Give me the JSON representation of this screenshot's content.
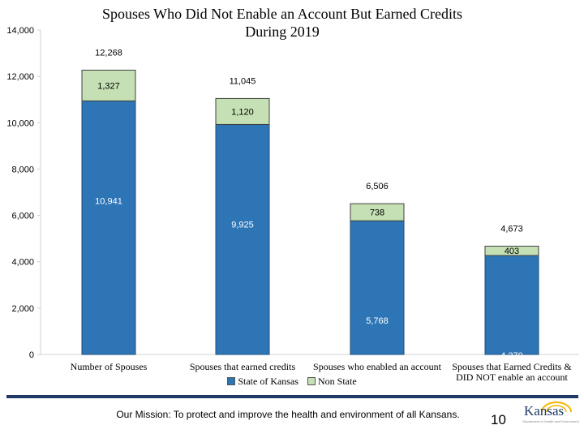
{
  "slide": {
    "title_line1": "Spouses Who Did Not Enable an Account But Earned Credits",
    "title_line2": "During 2019",
    "mission": "Our Mission: To protect and improve the health and environment of all Kansans.",
    "page_number": "10",
    "logo": {
      "word": "Kansas",
      "subtitle": "Department of Health and Environment"
    }
  },
  "colors": {
    "state": "#2e75b6",
    "non_state": "#c5e0b4",
    "rule": "#1f3864"
  },
  "chart_data": {
    "type": "bar",
    "stacked": true,
    "title": "Spouses Who Did Not Enable an Account But Earned Credits During 2019",
    "categories": [
      "Number of Spouses",
      "Spouses that earned credits",
      "Spouses who enabled an account",
      "Spouses that Earned Credits & DID NOT enable an account"
    ],
    "category_lines": [
      [
        "Number of Spouses"
      ],
      [
        "Spouses that earned credits"
      ],
      [
        "Spouses who enabled an account"
      ],
      [
        "Spouses that Earned Credits &",
        "DID NOT enable an account"
      ]
    ],
    "series": [
      {
        "name": "State of Kansas",
        "values": [
          10941,
          9925,
          5768,
          4270
        ],
        "labels": [
          "10,941",
          "9,925",
          "5,768",
          "4,270"
        ]
      },
      {
        "name": "Non State",
        "values": [
          1327,
          1120,
          738,
          403
        ],
        "labels": [
          "1,327",
          "1,120",
          "738",
          "403"
        ]
      }
    ],
    "totals": [
      12268,
      11045,
      6506,
      4673
    ],
    "total_labels": [
      "12,268",
      "11,045",
      "6,506",
      "4,673"
    ],
    "ylim": [
      0,
      14000
    ],
    "yticks": [
      0,
      2000,
      4000,
      6000,
      8000,
      10000,
      12000,
      14000
    ],
    "ytick_labels": [
      "0",
      "2,000",
      "4,000",
      "6,000",
      "8,000",
      "10,000",
      "12,000",
      "14,000"
    ],
    "legend": [
      "State of Kansas",
      "Non State"
    ],
    "legend_position": "bottom",
    "grid": false
  }
}
